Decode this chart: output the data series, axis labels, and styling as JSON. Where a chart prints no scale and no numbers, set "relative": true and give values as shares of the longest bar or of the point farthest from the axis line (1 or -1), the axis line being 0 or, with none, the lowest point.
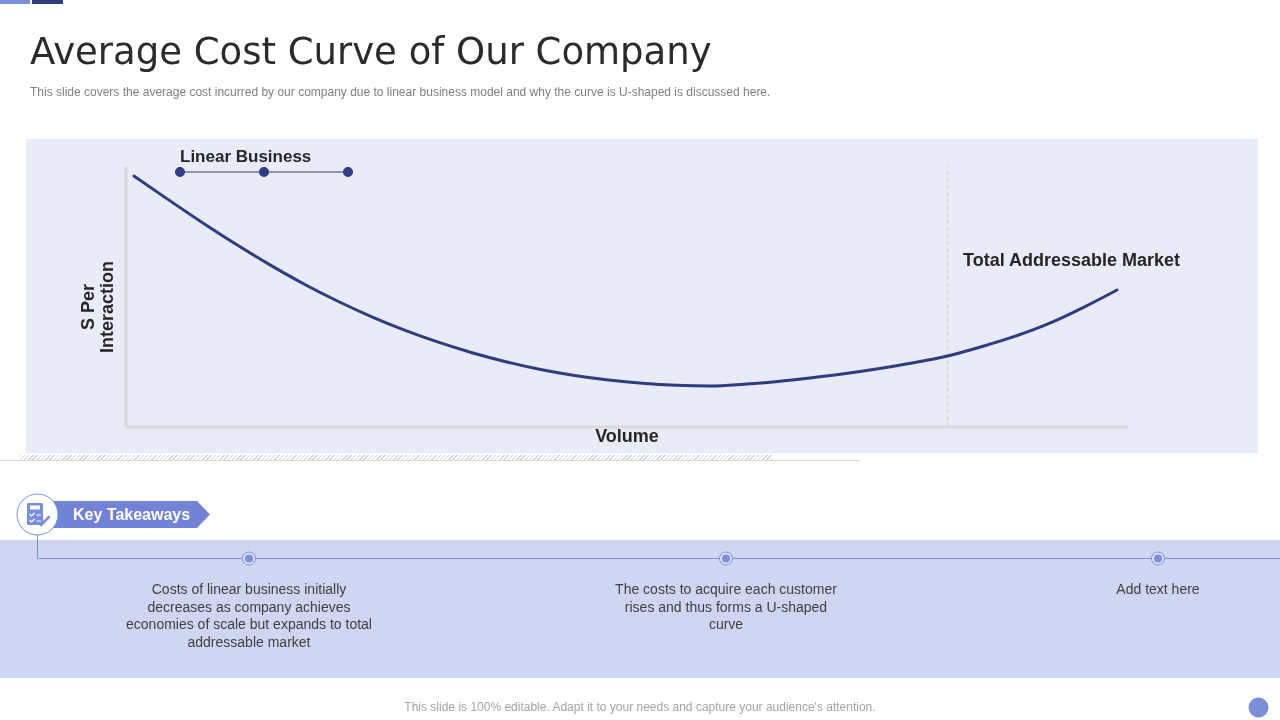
{
  "chart_data": {
    "type": "line",
    "title": "Average Cost Curve of Our Company",
    "subtitle": "This slide covers the average cost incurred by our company due to linear business model and why the curve is U-shaped is discussed here.",
    "xlabel": "Volume",
    "ylabel": "S Per Interaction",
    "relative": true,
    "categories": [
      null,
      null,
      null,
      null,
      null,
      null,
      null,
      null,
      null,
      null,
      null,
      null,
      null,
      null,
      null,
      null,
      null,
      null,
      null,
      null,
      null,
      null,
      null,
      null,
      null,
      null,
      null,
      null,
      null,
      null
    ],
    "series": [
      {
        "name": "Linear Business",
        "color": "#2e3d80",
        "values": [
          1,
          0.907,
          0.816,
          0.729,
          0.647,
          0.571,
          0.502,
          0.44,
          0.385,
          0.337,
          0.295,
          0.259,
          0.229,
          0.205,
          0.187,
          0.174,
          0.166,
          0.163,
          0.17,
          0.181,
          0.196,
          0.213,
          0.233,
          0.256,
          0.283,
          0.32,
          0.362,
          0.413,
          0.476,
          0.546
        ]
      }
    ],
    "annotations": [
      "Total Addressable Market",
      "Key Takeaways",
      "Costs of linear business initially decreases as company achieves economies of scale but expands to total addressable market",
      "The costs to acquire each customer rises and thus forms a U-shaped curve",
      "Add text here",
      "This slide is 100% editable. Adapt it to your needs and capture your audience's attention."
    ],
    "legend": "top left",
    "marker": "none",
    "line_style": "solid"
  }
}
